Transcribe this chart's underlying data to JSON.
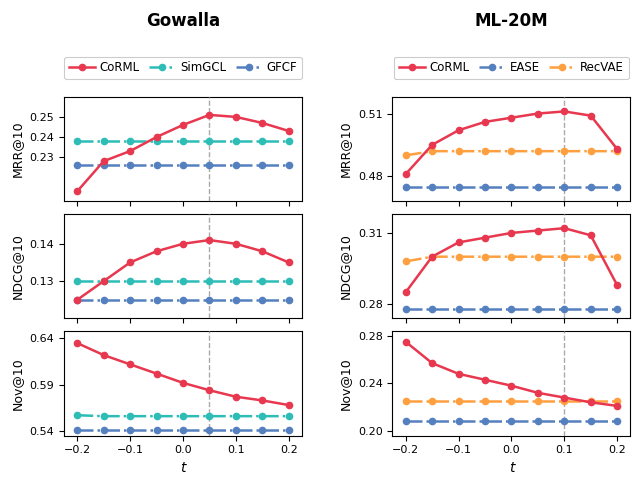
{
  "t_values": [
    -0.2,
    -0.15,
    -0.1,
    -0.05,
    0.0,
    0.05,
    0.1,
    0.15,
    0.2
  ],
  "gowalla": {
    "title": "Gowalla",
    "vline_x": 0.05,
    "CoRML_MRR": [
      0.213,
      0.228,
      0.233,
      0.24,
      0.246,
      0.251,
      0.25,
      0.247,
      0.243
    ],
    "SimGCL_MRR": [
      0.238,
      0.238,
      0.238,
      0.238,
      0.238,
      0.238,
      0.238,
      0.238,
      0.238
    ],
    "GFCF_MRR": [
      0.226,
      0.226,
      0.226,
      0.226,
      0.226,
      0.226,
      0.226,
      0.226,
      0.226
    ],
    "CoRML_NDCG": [
      0.125,
      0.13,
      0.135,
      0.138,
      0.14,
      0.141,
      0.14,
      0.138,
      0.135
    ],
    "SimGCL_NDCG": [
      0.13,
      0.13,
      0.13,
      0.13,
      0.13,
      0.13,
      0.13,
      0.13,
      0.13
    ],
    "GFCF_NDCG": [
      0.125,
      0.125,
      0.125,
      0.125,
      0.125,
      0.125,
      0.125,
      0.125,
      0.125
    ],
    "CoRML_Nov": [
      0.635,
      0.622,
      0.612,
      0.602,
      0.592,
      0.584,
      0.577,
      0.573,
      0.568
    ],
    "SimGCL_Nov": [
      0.557,
      0.556,
      0.556,
      0.556,
      0.556,
      0.556,
      0.556,
      0.556,
      0.556
    ],
    "GFCF_Nov": [
      0.541,
      0.541,
      0.541,
      0.541,
      0.541,
      0.541,
      0.541,
      0.541,
      0.541
    ],
    "MRR_ylim": [
      0.208,
      0.26
    ],
    "MRR_yticks": [
      0.23,
      0.24,
      0.25
    ],
    "NDCG_ylim": [
      0.12,
      0.148
    ],
    "NDCG_yticks": [
      0.13,
      0.14
    ],
    "Nov_ylim": [
      0.535,
      0.648
    ],
    "Nov_yticks": [
      0.54,
      0.59,
      0.64
    ]
  },
  "ml20m": {
    "title": "ML-20M",
    "vline_x": 0.1,
    "CoRML_MRR": [
      0.481,
      0.495,
      0.502,
      0.506,
      0.508,
      0.51,
      0.511,
      0.509,
      0.493
    ],
    "EASE_MRR": [
      0.475,
      0.475,
      0.475,
      0.475,
      0.475,
      0.475,
      0.475,
      0.475,
      0.475
    ],
    "RecVAE_MRR": [
      0.49,
      0.492,
      0.492,
      0.492,
      0.492,
      0.492,
      0.492,
      0.492,
      0.492
    ],
    "CoRML_NDCG": [
      0.285,
      0.3,
      0.306,
      0.308,
      0.31,
      0.311,
      0.312,
      0.309,
      0.288
    ],
    "EASE_NDCG": [
      0.278,
      0.278,
      0.278,
      0.278,
      0.278,
      0.278,
      0.278,
      0.278,
      0.278
    ],
    "RecVAE_NDCG": [
      0.298,
      0.3,
      0.3,
      0.3,
      0.3,
      0.3,
      0.3,
      0.3,
      0.3
    ],
    "CoRML_Nov": [
      0.275,
      0.257,
      0.248,
      0.243,
      0.238,
      0.232,
      0.228,
      0.224,
      0.221
    ],
    "EASE_Nov": [
      0.208,
      0.208,
      0.208,
      0.208,
      0.208,
      0.208,
      0.208,
      0.208,
      0.208
    ],
    "RecVAE_Nov": [
      0.225,
      0.225,
      0.225,
      0.225,
      0.225,
      0.225,
      0.225,
      0.225,
      0.225
    ],
    "MRR_ylim": [
      0.468,
      0.518
    ],
    "MRR_yticks": [
      0.48,
      0.51
    ],
    "NDCG_ylim": [
      0.274,
      0.318
    ],
    "NDCG_yticks": [
      0.28,
      0.31
    ],
    "Nov_ylim": [
      0.196,
      0.284
    ],
    "Nov_yticks": [
      0.2,
      0.24,
      0.28
    ]
  },
  "colors": {
    "CoRML": "#E8384F",
    "SimGCL": "#2DBDB6",
    "GFCF": "#5580C0",
    "EASE": "#5580C0",
    "RecVAE": "#FFA040"
  },
  "xlabel": "t",
  "xticks": [
    -0.2,
    -0.1,
    0.0,
    0.1,
    0.2
  ],
  "vline_color": "#AAAAAA"
}
